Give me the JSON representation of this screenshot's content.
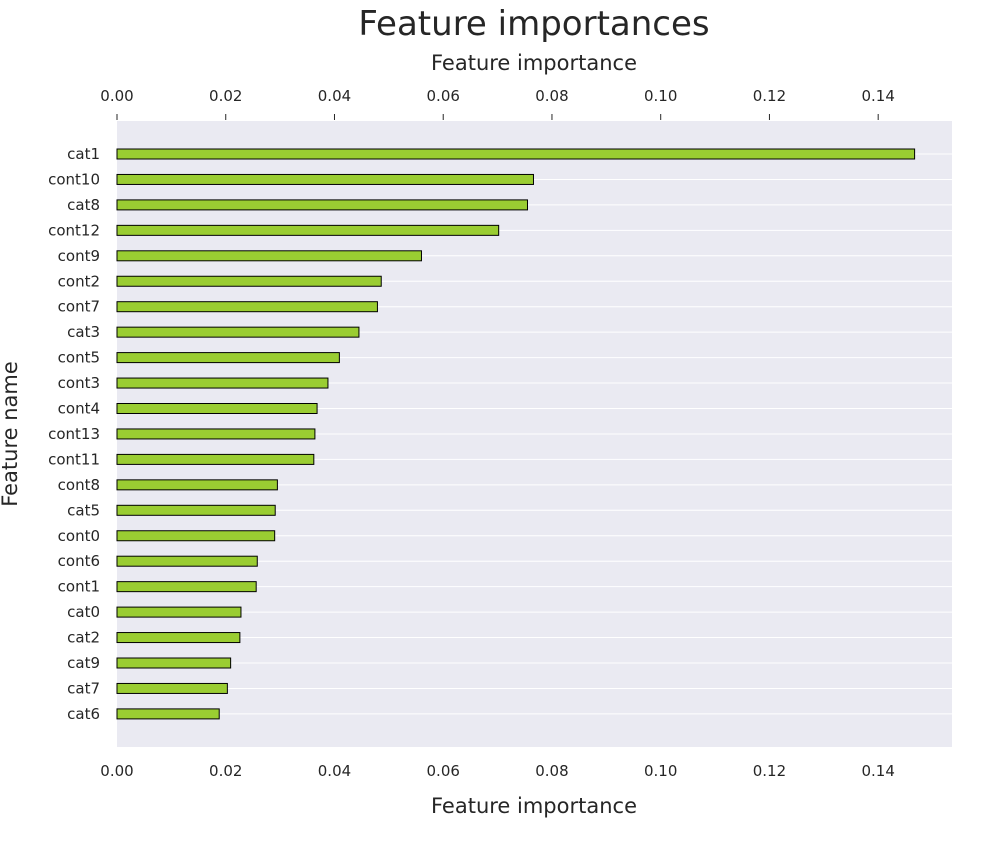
{
  "chart_data": {
    "type": "bar",
    "orientation": "horizontal",
    "title": "Feature importances",
    "xlabel": "Feature importance",
    "ylabel": "Feature name",
    "xlim": [
      0,
      0.154
    ],
    "xticks": [
      0.0,
      0.02,
      0.04,
      0.06,
      0.08,
      0.1,
      0.12,
      0.14
    ],
    "xtick_labels": [
      "0.00",
      "0.02",
      "0.04",
      "0.06",
      "0.08",
      "0.10",
      "0.12",
      "0.14"
    ],
    "x_axis_on_top_and_bottom": true,
    "grid": true,
    "categories": [
      "cat1",
      "cont10",
      "cat8",
      "cont12",
      "cont9",
      "cont2",
      "cont7",
      "cat3",
      "cont5",
      "cont3",
      "cont4",
      "cont13",
      "cont11",
      "cont8",
      "cat5",
      "cont0",
      "cont6",
      "cont1",
      "cat0",
      "cat2",
      "cat9",
      "cat7",
      "cat6"
    ],
    "values": [
      0.1467,
      0.0766,
      0.0755,
      0.0702,
      0.056,
      0.0486,
      0.0479,
      0.0445,
      0.0409,
      0.0388,
      0.0368,
      0.0364,
      0.0362,
      0.0295,
      0.0291,
      0.029,
      0.0258,
      0.0256,
      0.0228,
      0.0226,
      0.0209,
      0.0203,
      0.0188
    ],
    "colors": {
      "bar": "#9acd32",
      "bar_edge": "#000000",
      "plot_background": "#eaeaf2",
      "grid": "#ffffff",
      "text": "#262626"
    }
  }
}
